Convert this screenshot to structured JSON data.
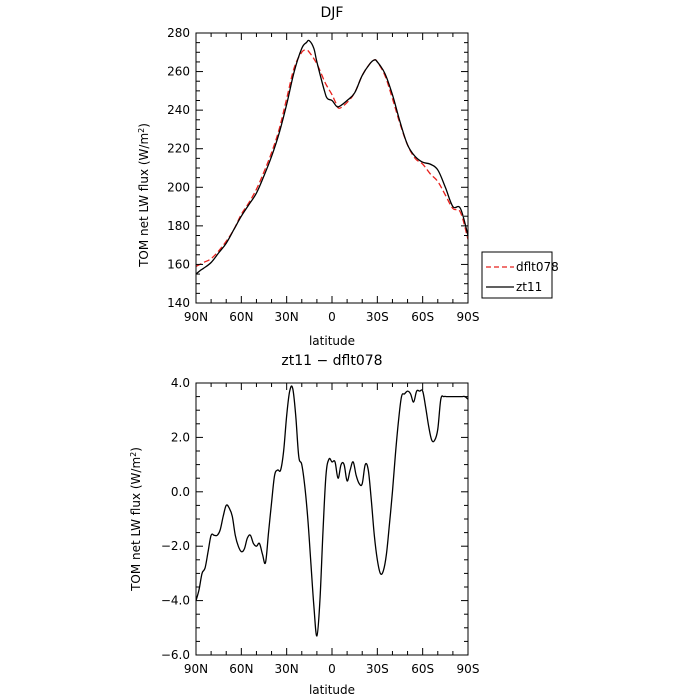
{
  "chart_data": [
    {
      "type": "line",
      "title": "DJF",
      "xlabel": "latitude",
      "ylabel": "TOM net LW flux (W/m²)",
      "ylabel_parts": {
        "prefix": "TOM net LW flux (W/m",
        "sup": "2",
        "suffix": ")"
      },
      "xlim": [
        90,
        -90
      ],
      "ylim": [
        140,
        280
      ],
      "x_ticks": [
        90,
        60,
        30,
        0,
        -30,
        -60,
        -90
      ],
      "x_tick_labels": [
        "90N",
        "60N",
        "30N",
        "0",
        "30S",
        "60S",
        "90S"
      ],
      "y_ticks": [
        140,
        160,
        180,
        200,
        220,
        240,
        260,
        280
      ],
      "y_tick_labels": [
        "140",
        "160",
        "180",
        "200",
        "220",
        "240",
        "260",
        "280"
      ],
      "grid": false,
      "legend_position": "right",
      "series": [
        {
          "name": "dflt078",
          "color": "#e8201c",
          "dash": "dashed",
          "x": [
            90,
            85,
            80,
            75,
            70,
            65,
            60,
            55,
            50,
            45,
            40,
            35,
            30,
            25,
            20,
            17,
            15,
            10,
            5,
            3,
            0,
            -3,
            -5,
            -10,
            -15,
            -20,
            -25,
            -28,
            -30,
            -35,
            -40,
            -45,
            -50,
            -55,
            -60,
            -65,
            -70,
            -75,
            -80,
            -85,
            -90
          ],
          "y": [
            159,
            161,
            163,
            167,
            172,
            178,
            186,
            192,
            199,
            208,
            218,
            230,
            246,
            262,
            270,
            271,
            270,
            264,
            255,
            252,
            248,
            243,
            241,
            244,
            249,
            258,
            264,
            266,
            265,
            258,
            246,
            233,
            222,
            215,
            212,
            207,
            203,
            196,
            189,
            187,
            173
          ]
        },
        {
          "name": "zt11",
          "color": "#000000",
          "dash": "solid",
          "x": [
            90,
            87,
            85,
            80,
            75,
            70,
            65,
            60,
            55,
            50,
            45,
            40,
            35,
            30,
            25,
            20,
            17,
            15,
            12,
            10,
            5,
            3,
            0,
            -3,
            -5,
            -10,
            -15,
            -20,
            -25,
            -28,
            -30,
            -35,
            -40,
            -45,
            -50,
            -55,
            -60,
            -65,
            -70,
            -75,
            -80,
            -85,
            -90
          ],
          "y": [
            155,
            157,
            158,
            161,
            166,
            171,
            178,
            185,
            191,
            197,
            206,
            216,
            228,
            243,
            260,
            272,
            275,
            276,
            272,
            265,
            250,
            246,
            245,
            242,
            242,
            245,
            249,
            258,
            264,
            266,
            265,
            259,
            248,
            234,
            222,
            216,
            213,
            212,
            209,
            200,
            190,
            189,
            175
          ]
        }
      ]
    },
    {
      "type": "line",
      "title": "zt11 − dflt078",
      "xlabel": "latitude",
      "ylabel": "TOM net LW flux (W/m²)",
      "ylabel_parts": {
        "prefix": "TOM net LW flux (W/m",
        "sup": "2",
        "suffix": ")"
      },
      "xlim": [
        90,
        -90
      ],
      "ylim": [
        -6,
        4
      ],
      "x_ticks": [
        90,
        60,
        30,
        0,
        -30,
        -60,
        -90
      ],
      "x_tick_labels": [
        "90N",
        "60N",
        "30N",
        "0",
        "30S",
        "60S",
        "90S"
      ],
      "y_ticks": [
        -6,
        -4,
        -2,
        0,
        2,
        4
      ],
      "y_tick_labels": [
        "−6.0",
        "−4.0",
        "−2.0",
        "0.0",
        "2.0",
        "4.0"
      ],
      "grid": false,
      "series": [
        {
          "name": "",
          "color": "#000000",
          "dash": "solid",
          "x": [
            90,
            88,
            86,
            84,
            82,
            80,
            78,
            76,
            74,
            72,
            70,
            68,
            66,
            64,
            62,
            60,
            58,
            56,
            54,
            52,
            50,
            48,
            46,
            44,
            42,
            40,
            38,
            36,
            34,
            32,
            30,
            28,
            26,
            24,
            22,
            20,
            18,
            16,
            14,
            12,
            10,
            8,
            6,
            4,
            2,
            0,
            -2,
            -4,
            -6,
            -8,
            -10,
            -12,
            -14,
            -16,
            -18,
            -20,
            -22,
            -24,
            -26,
            -28,
            -30,
            -32,
            -34,
            -36,
            -38,
            -40,
            -42,
            -44,
            -46,
            -48,
            -50,
            -52,
            -54,
            -56,
            -58,
            -60,
            -62,
            -64,
            -66,
            -68,
            -70,
            -72,
            -74,
            -76,
            -78,
            -80,
            -82,
            -84,
            -86,
            -88,
            -90
          ],
          "y": [
            -4.0,
            -3.6,
            -3.0,
            -2.8,
            -2.2,
            -1.6,
            -1.6,
            -1.6,
            -1.4,
            -0.9,
            -0.5,
            -0.6,
            -0.9,
            -1.6,
            -2.0,
            -2.2,
            -2.1,
            -1.7,
            -1.6,
            -1.9,
            -2.0,
            -1.9,
            -2.3,
            -2.6,
            -1.5,
            -0.4,
            0.6,
            0.8,
            0.8,
            1.5,
            2.8,
            3.7,
            3.8,
            2.8,
            1.3,
            1.0,
            0.2,
            -1.0,
            -2.6,
            -4.2,
            -5.3,
            -4.0,
            -1.5,
            0.6,
            1.2,
            1.1,
            1.1,
            0.5,
            1.0,
            1.0,
            0.4,
            0.8,
            1.1,
            0.6,
            0.3,
            0.3,
            1.0,
            0.8,
            -0.3,
            -1.6,
            -2.5,
            -3.0,
            -2.9,
            -2.3,
            -1.2,
            0.0,
            1.4,
            2.6,
            3.5,
            3.6,
            3.7,
            3.6,
            3.3,
            3.7,
            3.7,
            3.7,
            3.1,
            2.4,
            1.9,
            1.9,
            2.3,
            3.4,
            3.5,
            3.5,
            3.5,
            3.5,
            3.5,
            3.5,
            3.5,
            3.5,
            3.4
          ]
        }
      ]
    }
  ]
}
